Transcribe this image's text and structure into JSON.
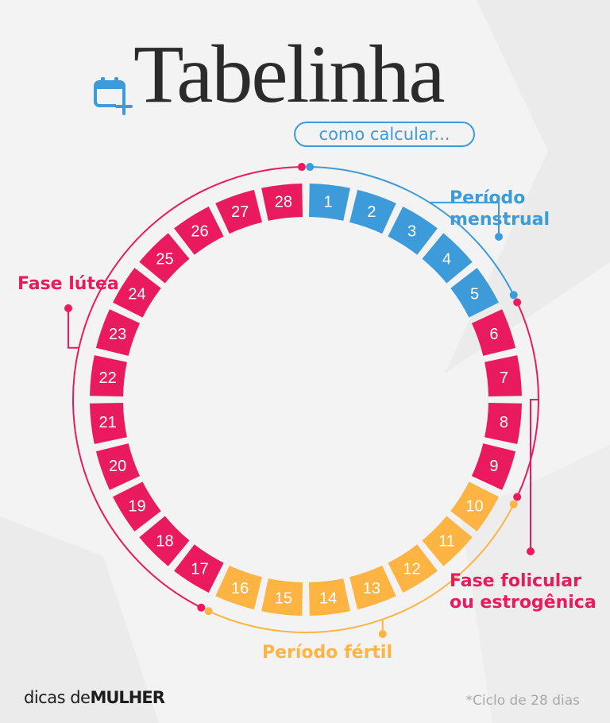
{
  "header": {
    "title": "Tabelinha",
    "subtitle": "como calcular..."
  },
  "colors": {
    "background": "#f3f3f3",
    "menstrual": "#3d9bd9",
    "fertile": "#fdb443",
    "pink": "#ea1a5e",
    "title_text": "#2b2b2b"
  },
  "cycle": {
    "total_days": 28,
    "days": [
      {
        "day": "1",
        "phase": "menstrual"
      },
      {
        "day": "2",
        "phase": "menstrual"
      },
      {
        "day": "3",
        "phase": "menstrual"
      },
      {
        "day": "4",
        "phase": "menstrual"
      },
      {
        "day": "5",
        "phase": "menstrual"
      },
      {
        "day": "6",
        "phase": "follicular"
      },
      {
        "day": "7",
        "phase": "follicular"
      },
      {
        "day": "8",
        "phase": "follicular"
      },
      {
        "day": "9",
        "phase": "follicular"
      },
      {
        "day": "10",
        "phase": "fertile"
      },
      {
        "day": "11",
        "phase": "fertile"
      },
      {
        "day": "12",
        "phase": "fertile"
      },
      {
        "day": "13",
        "phase": "fertile"
      },
      {
        "day": "14",
        "phase": "fertile"
      },
      {
        "day": "15",
        "phase": "fertile"
      },
      {
        "day": "16",
        "phase": "fertile"
      },
      {
        "day": "17",
        "phase": "luteal"
      },
      {
        "day": "18",
        "phase": "luteal"
      },
      {
        "day": "19",
        "phase": "luteal"
      },
      {
        "day": "20",
        "phase": "luteal"
      },
      {
        "day": "21",
        "phase": "luteal"
      },
      {
        "day": "22",
        "phase": "luteal"
      },
      {
        "day": "23",
        "phase": "luteal"
      },
      {
        "day": "24",
        "phase": "luteal"
      },
      {
        "day": "25",
        "phase": "luteal"
      },
      {
        "day": "26",
        "phase": "luteal"
      },
      {
        "day": "27",
        "phase": "luteal"
      },
      {
        "day": "28",
        "phase": "luteal"
      }
    ]
  },
  "phases": {
    "menstrual": {
      "label": "Período menstrual",
      "line1": "Período",
      "line2": "menstrual",
      "color": "#3d9bd9",
      "first_day": 1,
      "last_day": 5
    },
    "follicular": {
      "label": "Fase folicular ou estrogênica",
      "line1": "Fase folicular",
      "line2": "ou estrogênica",
      "color": "#ea1a5e",
      "first_day": 6,
      "last_day": 9
    },
    "fertile": {
      "label": "Período fértil",
      "color": "#fdb443",
      "first_day": 10,
      "last_day": 16
    },
    "luteal": {
      "label": "Fase lútea",
      "color": "#ea1a5e",
      "first_day": 17,
      "last_day": 28
    }
  },
  "footer": {
    "brand_part1": "dicas de",
    "brand_part2": "MULHER",
    "note": "*Ciclo de 28 dias"
  }
}
